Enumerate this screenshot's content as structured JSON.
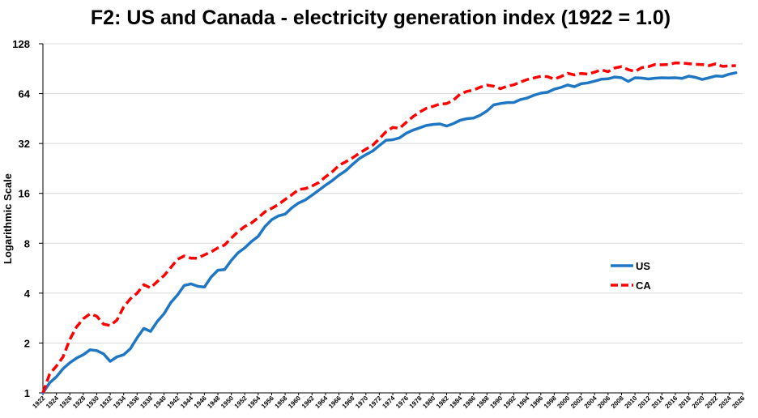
{
  "chart_data": {
    "type": "line",
    "title": "F2: US and Canada - electricity generation index (1922 = 1.0)",
    "xlabel": "",
    "ylabel": "Logarithmic Scale",
    "y_scale": "log2",
    "ylim": [
      1,
      128
    ],
    "xlim": [
      1922,
      2026
    ],
    "y_ticks": [
      "1",
      "2",
      "4",
      "8",
      "16",
      "32",
      "64",
      "128"
    ],
    "x_ticks": [
      "1922",
      "1924",
      "1926",
      "1928",
      "1930",
      "1932",
      "1934",
      "1936",
      "1938",
      "1940",
      "1942",
      "1944",
      "1946",
      "1948",
      "1950",
      "1952",
      "1954",
      "1956",
      "1958",
      "1960",
      "1962",
      "1964",
      "1966",
      "1968",
      "1970",
      "1972",
      "1974",
      "1976",
      "1978",
      "1980",
      "1982",
      "1984",
      "1986",
      "1988",
      "1990",
      "1992",
      "1994",
      "1996",
      "1998",
      "2000",
      "2002",
      "2004",
      "2006",
      "2008",
      "2010",
      "2012",
      "2014",
      "2016",
      "2018",
      "2020",
      "2022",
      "2024",
      "2026"
    ],
    "grid": {
      "horizontal": true,
      "vertical": false,
      "color": "#d9d9d9"
    },
    "legend_position": "right",
    "series": [
      {
        "name": "US",
        "color": "#1f77c4",
        "style": "solid",
        "points": [
          [
            1922,
            1.0
          ],
          [
            1923,
            1.15
          ],
          [
            1924,
            1.25
          ],
          [
            1925,
            1.4
          ],
          [
            1926,
            1.52
          ],
          [
            1927,
            1.62
          ],
          [
            1928,
            1.7
          ],
          [
            1929,
            1.82
          ],
          [
            1930,
            1.8
          ],
          [
            1931,
            1.72
          ],
          [
            1932,
            1.55
          ],
          [
            1933,
            1.65
          ],
          [
            1934,
            1.7
          ],
          [
            1935,
            1.85
          ],
          [
            1936,
            2.15
          ],
          [
            1937,
            2.45
          ],
          [
            1938,
            2.35
          ],
          [
            1939,
            2.7
          ],
          [
            1940,
            3.0
          ],
          [
            1941,
            3.5
          ],
          [
            1942,
            3.9
          ],
          [
            1943,
            4.45
          ],
          [
            1944,
            4.55
          ],
          [
            1945,
            4.4
          ],
          [
            1946,
            4.35
          ],
          [
            1947,
            5.0
          ],
          [
            1948,
            5.5
          ],
          [
            1949,
            5.55
          ],
          [
            1950,
            6.3
          ],
          [
            1951,
            7.0
          ],
          [
            1952,
            7.5
          ],
          [
            1953,
            8.2
          ],
          [
            1954,
            8.8
          ],
          [
            1955,
            10.1
          ],
          [
            1956,
            11.1
          ],
          [
            1957,
            11.7
          ],
          [
            1958,
            12.0
          ],
          [
            1959,
            13.1
          ],
          [
            1960,
            14.0
          ],
          [
            1961,
            14.6
          ],
          [
            1962,
            15.6
          ],
          [
            1963,
            16.7
          ],
          [
            1964,
            17.9
          ],
          [
            1965,
            19.1
          ],
          [
            1966,
            20.6
          ],
          [
            1967,
            21.9
          ],
          [
            1968,
            23.9
          ],
          [
            1969,
            25.9
          ],
          [
            1970,
            27.4
          ],
          [
            1971,
            28.8
          ],
          [
            1972,
            31.1
          ],
          [
            1973,
            33.5
          ],
          [
            1974,
            33.7
          ],
          [
            1975,
            34.6
          ],
          [
            1976,
            36.9
          ],
          [
            1977,
            38.5
          ],
          [
            1978,
            39.8
          ],
          [
            1979,
            41.1
          ],
          [
            1980,
            41.7
          ],
          [
            1981,
            42.0
          ],
          [
            1982,
            40.8
          ],
          [
            1983,
            42.2
          ],
          [
            1984,
            44.2
          ],
          [
            1985,
            45.2
          ],
          [
            1986,
            45.6
          ],
          [
            1987,
            47.4
          ],
          [
            1988,
            50.3
          ],
          [
            1989,
            54.7
          ],
          [
            1990,
            55.8
          ],
          [
            1991,
            56.5
          ],
          [
            1992,
            56.6
          ],
          [
            1993,
            58.9
          ],
          [
            1994,
            60.3
          ],
          [
            1995,
            62.6
          ],
          [
            1996,
            64.4
          ],
          [
            1997,
            65.2
          ],
          [
            1998,
            68.1
          ],
          [
            1999,
            69.8
          ],
          [
            2000,
            72.2
          ],
          [
            2001,
            70.5
          ],
          [
            2002,
            73.4
          ],
          [
            2003,
            74.3
          ],
          [
            2004,
            76.1
          ],
          [
            2005,
            78.2
          ],
          [
            2006,
            78.6
          ],
          [
            2007,
            80.6
          ],
          [
            2008,
            79.8
          ],
          [
            2009,
            75.8
          ],
          [
            2010,
            79.8
          ],
          [
            2011,
            79.4
          ],
          [
            2012,
            78.4
          ],
          [
            2013,
            79.3
          ],
          [
            2014,
            79.8
          ],
          [
            2015,
            79.6
          ],
          [
            2016,
            79.8
          ],
          [
            2017,
            79.1
          ],
          [
            2018,
            81.6
          ],
          [
            2019,
            80.2
          ],
          [
            2020,
            77.9
          ],
          [
            2021,
            79.8
          ],
          [
            2022,
            81.8
          ],
          [
            2023,
            81.3
          ],
          [
            2024,
            83.8
          ],
          [
            2025,
            85.5
          ]
        ]
      },
      {
        "name": "CA",
        "color": "#ff0000",
        "style": "dashed",
        "points": [
          [
            1922,
            1.0
          ],
          [
            1923,
            1.3
          ],
          [
            1924,
            1.45
          ],
          [
            1925,
            1.65
          ],
          [
            1926,
            2.1
          ],
          [
            1927,
            2.5
          ],
          [
            1928,
            2.8
          ],
          [
            1929,
            3.0
          ],
          [
            1930,
            2.9
          ],
          [
            1931,
            2.6
          ],
          [
            1932,
            2.55
          ],
          [
            1933,
            2.75
          ],
          [
            1934,
            3.3
          ],
          [
            1935,
            3.7
          ],
          [
            1936,
            4.0
          ],
          [
            1937,
            4.5
          ],
          [
            1938,
            4.3
          ],
          [
            1939,
            4.7
          ],
          [
            1940,
            5.1
          ],
          [
            1941,
            5.7
          ],
          [
            1942,
            6.4
          ],
          [
            1943,
            6.7
          ],
          [
            1944,
            6.5
          ],
          [
            1945,
            6.5
          ],
          [
            1946,
            6.8
          ],
          [
            1947,
            7.1
          ],
          [
            1948,
            7.5
          ],
          [
            1949,
            7.8
          ],
          [
            1950,
            8.6
          ],
          [
            1951,
            9.4
          ],
          [
            1952,
            10.1
          ],
          [
            1953,
            10.6
          ],
          [
            1954,
            11.4
          ],
          [
            1955,
            12.4
          ],
          [
            1956,
            13.0
          ],
          [
            1957,
            13.7
          ],
          [
            1958,
            14.7
          ],
          [
            1959,
            15.7
          ],
          [
            1960,
            16.9
          ],
          [
            1961,
            17.1
          ],
          [
            1962,
            17.7
          ],
          [
            1963,
            18.6
          ],
          [
            1964,
            20.1
          ],
          [
            1965,
            21.6
          ],
          [
            1966,
            23.6
          ],
          [
            1967,
            24.8
          ],
          [
            1968,
            26.2
          ],
          [
            1969,
            27.9
          ],
          [
            1970,
            29.6
          ],
          [
            1971,
            31.2
          ],
          [
            1972,
            34.2
          ],
          [
            1973,
            37.7
          ],
          [
            1974,
            40.0
          ],
          [
            1975,
            39.5
          ],
          [
            1976,
            42.9
          ],
          [
            1977,
            46.4
          ],
          [
            1978,
            49.5
          ],
          [
            1979,
            52.2
          ],
          [
            1980,
            53.6
          ],
          [
            1981,
            55.4
          ],
          [
            1982,
            55.7
          ],
          [
            1983,
            58.4
          ],
          [
            1984,
            63.5
          ],
          [
            1985,
            66.0
          ],
          [
            1986,
            67.2
          ],
          [
            1987,
            70.0
          ],
          [
            1988,
            72.0
          ],
          [
            1989,
            71.0
          ],
          [
            1990,
            68.5
          ],
          [
            1991,
            71.0
          ],
          [
            1992,
            72.3
          ],
          [
            1993,
            75.2
          ],
          [
            1994,
            77.9
          ],
          [
            1995,
            79.6
          ],
          [
            1996,
            81.4
          ],
          [
            1997,
            81.0
          ],
          [
            1998,
            78.3
          ],
          [
            1999,
            81.1
          ],
          [
            2000,
            85.0
          ],
          [
            2001,
            83.0
          ],
          [
            2002,
            84.7
          ],
          [
            2003,
            83.9
          ],
          [
            2004,
            86.2
          ],
          [
            2005,
            89.1
          ],
          [
            2006,
            86.8
          ],
          [
            2007,
            91.4
          ],
          [
            2008,
            93.2
          ],
          [
            2009,
            89.3
          ],
          [
            2010,
            87.0
          ],
          [
            2011,
            91.8
          ],
          [
            2012,
            93.1
          ],
          [
            2013,
            96.0
          ],
          [
            2014,
            95.5
          ],
          [
            2015,
            96.0
          ],
          [
            2016,
            98.0
          ],
          [
            2017,
            97.9
          ],
          [
            2018,
            97.0
          ],
          [
            2019,
            96.2
          ],
          [
            2020,
            95.8
          ],
          [
            2021,
            94.5
          ],
          [
            2022,
            96.8
          ],
          [
            2023,
            93.5
          ],
          [
            2024,
            94.0
          ],
          [
            2025,
            94.4
          ]
        ]
      }
    ]
  }
}
